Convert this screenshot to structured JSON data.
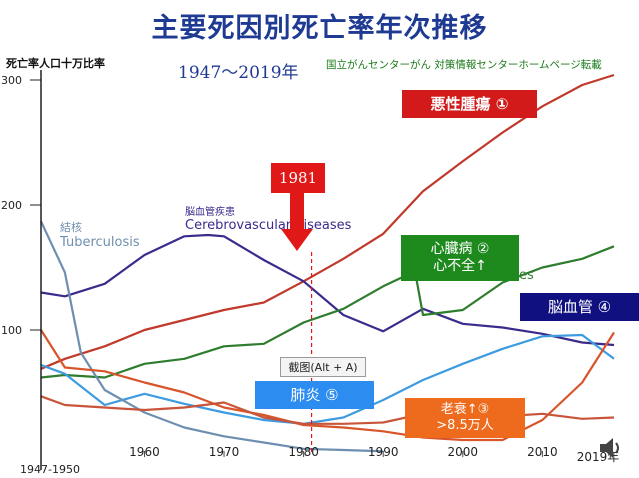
{
  "header": {
    "title": "主要死因別死亡率年次推移",
    "period": "1947～2019年",
    "source": "国立がんセンターがん 対策情報センターホームページ転載",
    "y_axis_label": "死亡率人口十万比率"
  },
  "callouts": {
    "akusei": "悪性腫瘍 ①",
    "shinzo_line1": "心臓病 ②",
    "shinzo_line2": "心不全↑",
    "nokekkan": "脳血管 ④",
    "haien": "肺炎 ⑤",
    "rosui_line1": "老衰↑③",
    "rosui_line2": ">8.5万人",
    "year_marker": "1981",
    "capture_button": "截图(Alt + A)"
  },
  "embedded_labels": {
    "kekkaku_jp": "結核",
    "kekkaku_en": "Tuberculosis",
    "cv_jp": "脳血管疾患",
    "cv_en": "Cerebrovascular diseases",
    "heart_en_partial": "es"
  },
  "colors": {
    "title": "#1f3a93",
    "malignant": "#c0392b",
    "cerebrovascular": "#3c2a8c",
    "heart": "#2e7d2e",
    "pneumonia": "#3d9be0",
    "tuberculosis": "#6f8fb0",
    "senility": "#d8552b",
    "accident": "#c8553a",
    "marker": "#e01818"
  },
  "icons": [
    "speaker-icon",
    "down-arrow-icon"
  ],
  "chart_data": {
    "type": "line",
    "x_axis": {
      "ticks": [
        1960,
        1970,
        1980,
        1990,
        2000,
        2010
      ],
      "tick_labels": [
        "1960",
        "1970",
        "1980",
        "1990",
        "2000",
        "2010"
      ],
      "start_label": "1947-1950",
      "end_label": "2019年",
      "range": [
        1947,
        2019
      ]
    },
    "y_axis": {
      "ticks": [
        100,
        200,
        300
      ],
      "tick_labels": [
        "100",
        "200",
        "300"
      ],
      "range": [
        0,
        300
      ]
    },
    "marker_year": 1981,
    "series": [
      {
        "key": "malignant",
        "x": [
          1947,
          1950,
          1955,
          1960,
          1965,
          1970,
          1975,
          1980,
          1985,
          1990,
          1995,
          2000,
          2005,
          2010,
          2015,
          2019
        ],
        "y": [
          69,
          77,
          87,
          100,
          108,
          116,
          122,
          139,
          157,
          177,
          211,
          235,
          258,
          279,
          296,
          304
        ]
      },
      {
        "key": "cerebrovascular",
        "x": [
          1947,
          1950,
          1955,
          1960,
          1965,
          1968,
          1970,
          1975,
          1980,
          1985,
          1990,
          1995,
          2000,
          2005,
          2010,
          2015,
          2019
        ],
        "y": [
          130,
          127,
          137,
          160,
          175,
          176,
          175,
          156,
          139,
          112,
          99,
          117,
          105,
          102,
          97,
          90,
          88
        ]
      },
      {
        "key": "heart",
        "x": [
          1947,
          1950,
          1955,
          1960,
          1965,
          1970,
          1975,
          1980,
          1985,
          1990,
          1994,
          1995,
          2000,
          2005,
          2010,
          2015,
          2019
        ],
        "y": [
          62,
          64,
          62,
          73,
          77,
          87,
          89,
          106,
          117,
          135,
          147,
          112,
          116,
          138,
          150,
          157,
          167
        ]
      },
      {
        "key": "pneumonia",
        "x": [
          1947,
          1950,
          1955,
          1960,
          1965,
          1970,
          1975,
          1980,
          1985,
          1990,
          1995,
          2000,
          2005,
          2010,
          2015,
          2019
        ],
        "y": [
          72,
          65,
          40,
          49,
          41,
          34,
          28,
          25,
          30,
          44,
          60,
          73,
          85,
          95,
          96,
          77
        ]
      },
      {
        "key": "tuberculosis",
        "x": [
          1947,
          1950,
          1952,
          1955,
          1960,
          1965,
          1970,
          1975,
          1980,
          1985,
          1990
        ],
        "y": [
          187,
          146,
          82,
          52,
          34,
          22,
          15,
          10,
          5,
          4,
          3
        ]
      },
      {
        "key": "senility",
        "x": [
          1947,
          1950,
          1955,
          1960,
          1965,
          1970,
          1975,
          1980,
          1985,
          1990,
          1995,
          2000,
          2005,
          2010,
          2015,
          2019
        ],
        "y": [
          100,
          70,
          67,
          58,
          50,
          38,
          32,
          24,
          22,
          19,
          14,
          12,
          12,
          28,
          58,
          98
        ]
      },
      {
        "key": "accident",
        "x": [
          1947,
          1950,
          1955,
          1960,
          1965,
          1970,
          1975,
          1980,
          1985,
          1990,
          1995,
          2000,
          2005,
          2010,
          2015,
          2019
        ],
        "y": [
          47,
          40,
          38,
          36,
          38,
          42,
          30,
          25,
          25,
          26,
          33,
          30,
          31,
          33,
          29,
          30
        ]
      }
    ]
  }
}
